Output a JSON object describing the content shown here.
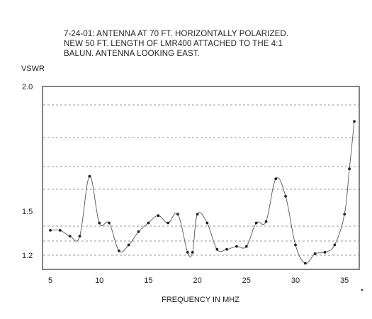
{
  "chart_data": {
    "type": "line",
    "title_lines": [
      "7-24-01: ANTENNA AT 70 FT. HORIZONTALLY POLARIZED.",
      "NEW 50 FT. LENGTH OF LMR400 ATTACHED TO THE 4:1",
      "BALUN. ANTENNA LOOKING EAST."
    ],
    "xlabel": "FREQUENCY IN MHZ",
    "ylabel": "VSWR",
    "x_ticks": [
      "5",
      "10",
      "15",
      "20",
      "25",
      "30",
      "35"
    ],
    "y_ticks": [
      "2.0",
      "1.5",
      "1.2"
    ],
    "xlim": [
      4.5,
      36.5
    ],
    "grid": "horizontal dashed",
    "series": [
      {
        "x": [
          5,
          6,
          7,
          8,
          9,
          10,
          11,
          12,
          13,
          14,
          15,
          16,
          17,
          18,
          19,
          19.5,
          20,
          21,
          22,
          23,
          24,
          25,
          26,
          27,
          28,
          29,
          30,
          31,
          32,
          33,
          34,
          35,
          35.5,
          36
        ],
        "y": [
          1.37,
          1.37,
          1.33,
          1.33,
          1.64,
          1.42,
          1.42,
          1.23,
          1.27,
          1.36,
          1.42,
          1.47,
          1.42,
          1.48,
          1.22,
          1.22,
          1.48,
          1.42,
          1.24,
          1.24,
          1.26,
          1.26,
          1.42,
          1.43,
          1.63,
          1.56,
          1.27,
          1.14,
          1.21,
          1.22,
          1.27,
          1.48,
          1.67,
          1.86
        ]
      }
    ]
  }
}
